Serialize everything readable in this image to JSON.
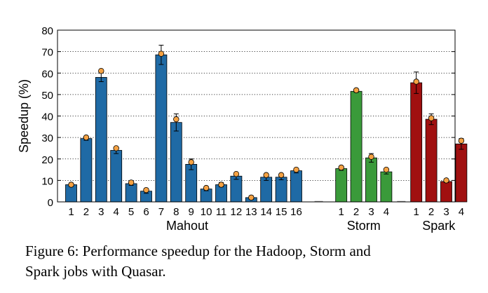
{
  "chart_data": {
    "type": "bar",
    "ylabel": "Speedup (%)",
    "ylim": [
      0,
      80
    ],
    "yticks": [
      0,
      10,
      20,
      30,
      40,
      50,
      60,
      70,
      80
    ],
    "grid": true,
    "legend": "none",
    "series": [
      {
        "group": "Mahout",
        "color": "#1f6aa5",
        "categories": [
          "1",
          "2",
          "3",
          "4",
          "5",
          "6",
          "7",
          "8",
          "9",
          "10",
          "11",
          "12",
          "13",
          "14",
          "15",
          "16"
        ],
        "values": [
          8,
          29.5,
          58,
          24,
          8.5,
          5,
          68.5,
          37,
          17.5,
          6,
          8,
          12,
          2,
          11.5,
          11.5,
          14.5
        ],
        "error": [
          0.8,
          0.8,
          2,
          1.5,
          0.8,
          1,
          4.5,
          4,
          2.5,
          0.8,
          1,
          1.5,
          0.8,
          1.5,
          1.2,
          1
        ],
        "markers": [
          8,
          30,
          61,
          25,
          9,
          5.5,
          69,
          38.5,
          18.5,
          6.5,
          8,
          13,
          2,
          12.5,
          12.5,
          15
        ]
      },
      {
        "group": "Storm",
        "color": "#3a9a3a",
        "categories": [
          "1",
          "2",
          "3",
          "4"
        ],
        "values": [
          15.5,
          51.5,
          20.5,
          14
        ],
        "error": [
          0.8,
          0.5,
          2,
          1
        ],
        "markers": [
          16,
          52,
          21,
          15
        ]
      },
      {
        "group": "Spark",
        "color": "#a01010",
        "categories": [
          "1",
          "2",
          "3",
          "4"
        ],
        "values": [
          55.5,
          38.5,
          9.5,
          27
        ],
        "error": [
          5,
          2.5,
          0.5,
          2.5
        ],
        "markers": [
          56,
          39,
          10,
          28.5
        ]
      }
    ]
  },
  "caption": {
    "line1": "Figure 6:  Performance speedup for the Hadoop, Storm and",
    "line2": "Spark jobs with Quasar."
  }
}
